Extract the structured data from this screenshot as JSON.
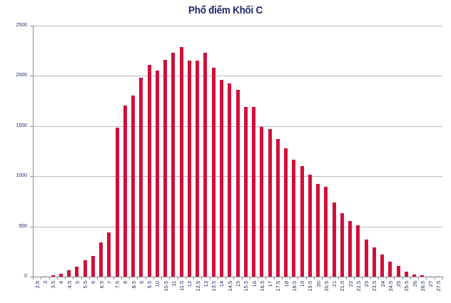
{
  "title": "Phổ điểm Khối C",
  "colors": {
    "bar": "#d0103a",
    "title": "#1f2a6b",
    "grid": "#b8b8c0",
    "axis": "#8a8a96"
  },
  "chart_data": {
    "type": "bar",
    "title": "Phổ điểm Khối C",
    "xlabel": "",
    "ylabel": "",
    "ylim": [
      0,
      2500
    ],
    "yticks": [
      0,
      500,
      1000,
      1500,
      2000,
      2500
    ],
    "grid": true,
    "legend": null,
    "categories": [
      "2.5",
      "3",
      "3.5",
      "4",
      "4.5",
      "5",
      "5.5",
      "6",
      "6.5",
      "7",
      "7.5",
      "8",
      "8.5",
      "9",
      "9.5",
      "10",
      "10.5",
      "11",
      "11.5",
      "12",
      "12.5",
      "13",
      "13.5",
      "14",
      "14.5",
      "15",
      "15.5",
      "16",
      "16.5",
      "17",
      "17.5",
      "18",
      "18.5",
      "19",
      "19.5",
      "20",
      "20.5",
      "21",
      "21.5",
      "22",
      "22.5",
      "23",
      "23.5",
      "24",
      "24.5",
      "25",
      "25.5",
      "26",
      "26.5",
      "27",
      "27.5"
    ],
    "values": [
      2,
      6,
      13,
      31,
      63,
      96,
      165,
      206,
      338,
      440,
      1483,
      1704,
      1806,
      1985,
      2111,
      2052,
      2161,
      2232,
      2284,
      2150,
      2150,
      2228,
      2084,
      1963,
      1925,
      1864,
      1689,
      1693,
      1492,
      1473,
      1371,
      1277,
      1165,
      1099,
      1016,
      921,
      895,
      737,
      635,
      554,
      511,
      367,
      291,
      220,
      149,
      104,
      48,
      22,
      15,
      4,
      5
    ]
  }
}
